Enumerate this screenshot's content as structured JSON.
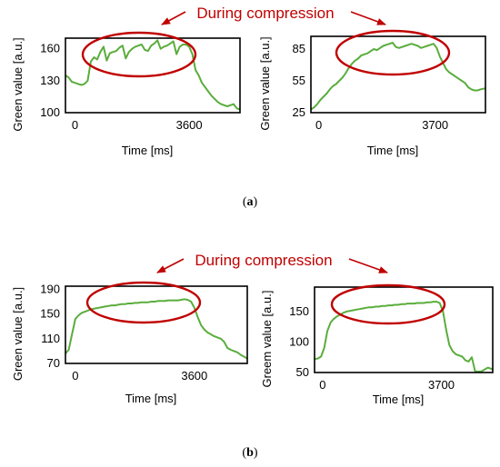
{
  "colors": {
    "series": "#5aad3c",
    "annotation": "#c00000",
    "frame": "#000000"
  },
  "panels": [
    {
      "label_open": "(",
      "label_letter": "a",
      "label_close": ")",
      "annotation": "During compression"
    },
    {
      "label_open": "(",
      "label_letter": "b",
      "label_close": ")",
      "annotation": "During compression"
    }
  ],
  "chart_data": [
    {
      "type": "line",
      "panel": "a",
      "title": "",
      "xlabel": "Time [ms]",
      "ylabel": "Green value [a.u.]",
      "ylim": [
        100,
        170
      ],
      "xlim": [
        -300,
        5200
      ],
      "yticks": [
        100,
        130,
        160
      ],
      "xticks": [
        0,
        3600
      ],
      "x": [
        -300,
        -200,
        -100,
        0,
        100,
        200,
        300,
        400,
        500,
        600,
        700,
        800,
        900,
        1000,
        1100,
        1200,
        1300,
        1400,
        1500,
        1600,
        1700,
        1800,
        1900,
        2000,
        2100,
        2200,
        2300,
        2400,
        2500,
        2600,
        2700,
        2800,
        2900,
        3000,
        3100,
        3200,
        3300,
        3400,
        3500,
        3600,
        3700,
        3800,
        3900,
        4000,
        4100,
        4200,
        4300,
        4400,
        4500,
        4600,
        4700,
        4800,
        4900,
        5000,
        5100,
        5200
      ],
      "y": [
        135,
        133,
        129,
        128,
        127,
        126,
        127,
        130,
        148,
        152,
        150,
        157,
        162,
        149,
        156,
        157,
        158,
        161,
        163,
        151,
        157,
        160,
        162,
        163,
        164,
        159,
        158,
        163,
        165,
        168,
        160,
        162,
        163,
        165,
        167,
        155,
        162,
        164,
        164,
        162,
        155,
        140,
        135,
        128,
        124,
        120,
        116,
        113,
        110,
        108,
        107,
        106,
        107,
        108,
        104,
        103
      ]
    },
    {
      "type": "line",
      "panel": "a",
      "title": "",
      "xlabel": "Time  [ms]",
      "ylabel": "Green value [a.u.]",
      "ylim": [
        25,
        97
      ],
      "xlim": [
        -250,
        5300
      ],
      "yticks": [
        25,
        55,
        85
      ],
      "xticks": [
        0,
        3700
      ],
      "x": [
        -250,
        -150,
        -50,
        50,
        150,
        250,
        350,
        450,
        550,
        650,
        750,
        850,
        950,
        1050,
        1150,
        1250,
        1350,
        1450,
        1550,
        1650,
        1750,
        1850,
        1950,
        2050,
        2150,
        2250,
        2350,
        2450,
        2550,
        2650,
        2750,
        2850,
        2950,
        3050,
        3150,
        3250,
        3350,
        3450,
        3550,
        3650,
        3750,
        3850,
        3950,
        4050,
        4150,
        4250,
        4350,
        4450,
        4550,
        4650,
        4750,
        4850,
        4950,
        5050,
        5150,
        5300
      ],
      "y": [
        28,
        30,
        33,
        37,
        40,
        43,
        47,
        50,
        52,
        55,
        58,
        62,
        67,
        71,
        74,
        76,
        79,
        80,
        81,
        83,
        85,
        84,
        86,
        88,
        89,
        90,
        91,
        87,
        86,
        87,
        88,
        89,
        90,
        89,
        88,
        86,
        87,
        88,
        89,
        90,
        86,
        78,
        72,
        66,
        63,
        61,
        59,
        57,
        55,
        53,
        49,
        47,
        46,
        46,
        47,
        48
      ]
    },
    {
      "type": "line",
      "panel": "b",
      "title": "",
      "xlabel": "Time [ms]",
      "ylabel": "Green value [a.u.]",
      "ylim": [
        70,
        195
      ],
      "xlim": [
        -300,
        5200
      ],
      "yticks": [
        70,
        110,
        150,
        190
      ],
      "xticks": [
        0,
        3600
      ],
      "x": [
        -300,
        -200,
        -100,
        0,
        100,
        200,
        300,
        400,
        500,
        600,
        700,
        800,
        900,
        1000,
        1100,
        1200,
        1300,
        1400,
        1500,
        1600,
        1700,
        1800,
        1900,
        2000,
        2100,
        2200,
        2300,
        2400,
        2500,
        2600,
        2700,
        2800,
        2900,
        3000,
        3100,
        3200,
        3300,
        3400,
        3500,
        3600,
        3700,
        3800,
        3900,
        4000,
        4100,
        4200,
        4300,
        4400,
        4500,
        4600,
        4700,
        4800,
        4900,
        5000,
        5100,
        5200
      ],
      "y": [
        86,
        92,
        118,
        142,
        148,
        152,
        154,
        156,
        158,
        159,
        160,
        161,
        162,
        163,
        164,
        164,
        165,
        166,
        166,
        167,
        167,
        168,
        168,
        169,
        169,
        169,
        170,
        170,
        171,
        171,
        171,
        172,
        172,
        172,
        172,
        173,
        174,
        173,
        170,
        160,
        145,
        132,
        125,
        120,
        117,
        114,
        112,
        110,
        105,
        95,
        92,
        90,
        88,
        84,
        81,
        78
      ]
    },
    {
      "type": "line",
      "panel": "b",
      "title": "",
      "xlabel": "Time [ms]",
      "ylabel": "Greem value [a.u.]",
      "ylim": [
        50,
        190
      ],
      "xlim": [
        -250,
        5300
      ],
      "yticks": [
        50,
        100,
        150
      ],
      "xticks": [
        0,
        3700
      ],
      "x": [
        -250,
        -150,
        -50,
        50,
        150,
        250,
        350,
        450,
        550,
        650,
        750,
        850,
        950,
        1050,
        1150,
        1250,
        1350,
        1450,
        1550,
        1650,
        1750,
        1850,
        1950,
        2050,
        2150,
        2250,
        2350,
        2450,
        2550,
        2650,
        2750,
        2850,
        2950,
        3050,
        3150,
        3250,
        3350,
        3450,
        3550,
        3650,
        3750,
        3850,
        3950,
        4050,
        4150,
        4250,
        4350,
        4450,
        4550,
        4650,
        4750,
        4850,
        4950,
        5050,
        5150,
        5300
      ],
      "y": [
        72,
        73,
        76,
        90,
        118,
        132,
        138,
        142,
        145,
        148,
        150,
        151,
        152,
        153,
        154,
        155,
        156,
        157,
        157,
        158,
        158,
        159,
        159,
        160,
        160,
        161,
        161,
        162,
        162,
        163,
        163,
        163,
        164,
        164,
        164,
        165,
        165,
        166,
        166,
        164,
        150,
        120,
        95,
        85,
        80,
        78,
        76,
        70,
        68,
        75,
        52,
        50,
        52,
        55,
        58,
        55
      ]
    }
  ]
}
